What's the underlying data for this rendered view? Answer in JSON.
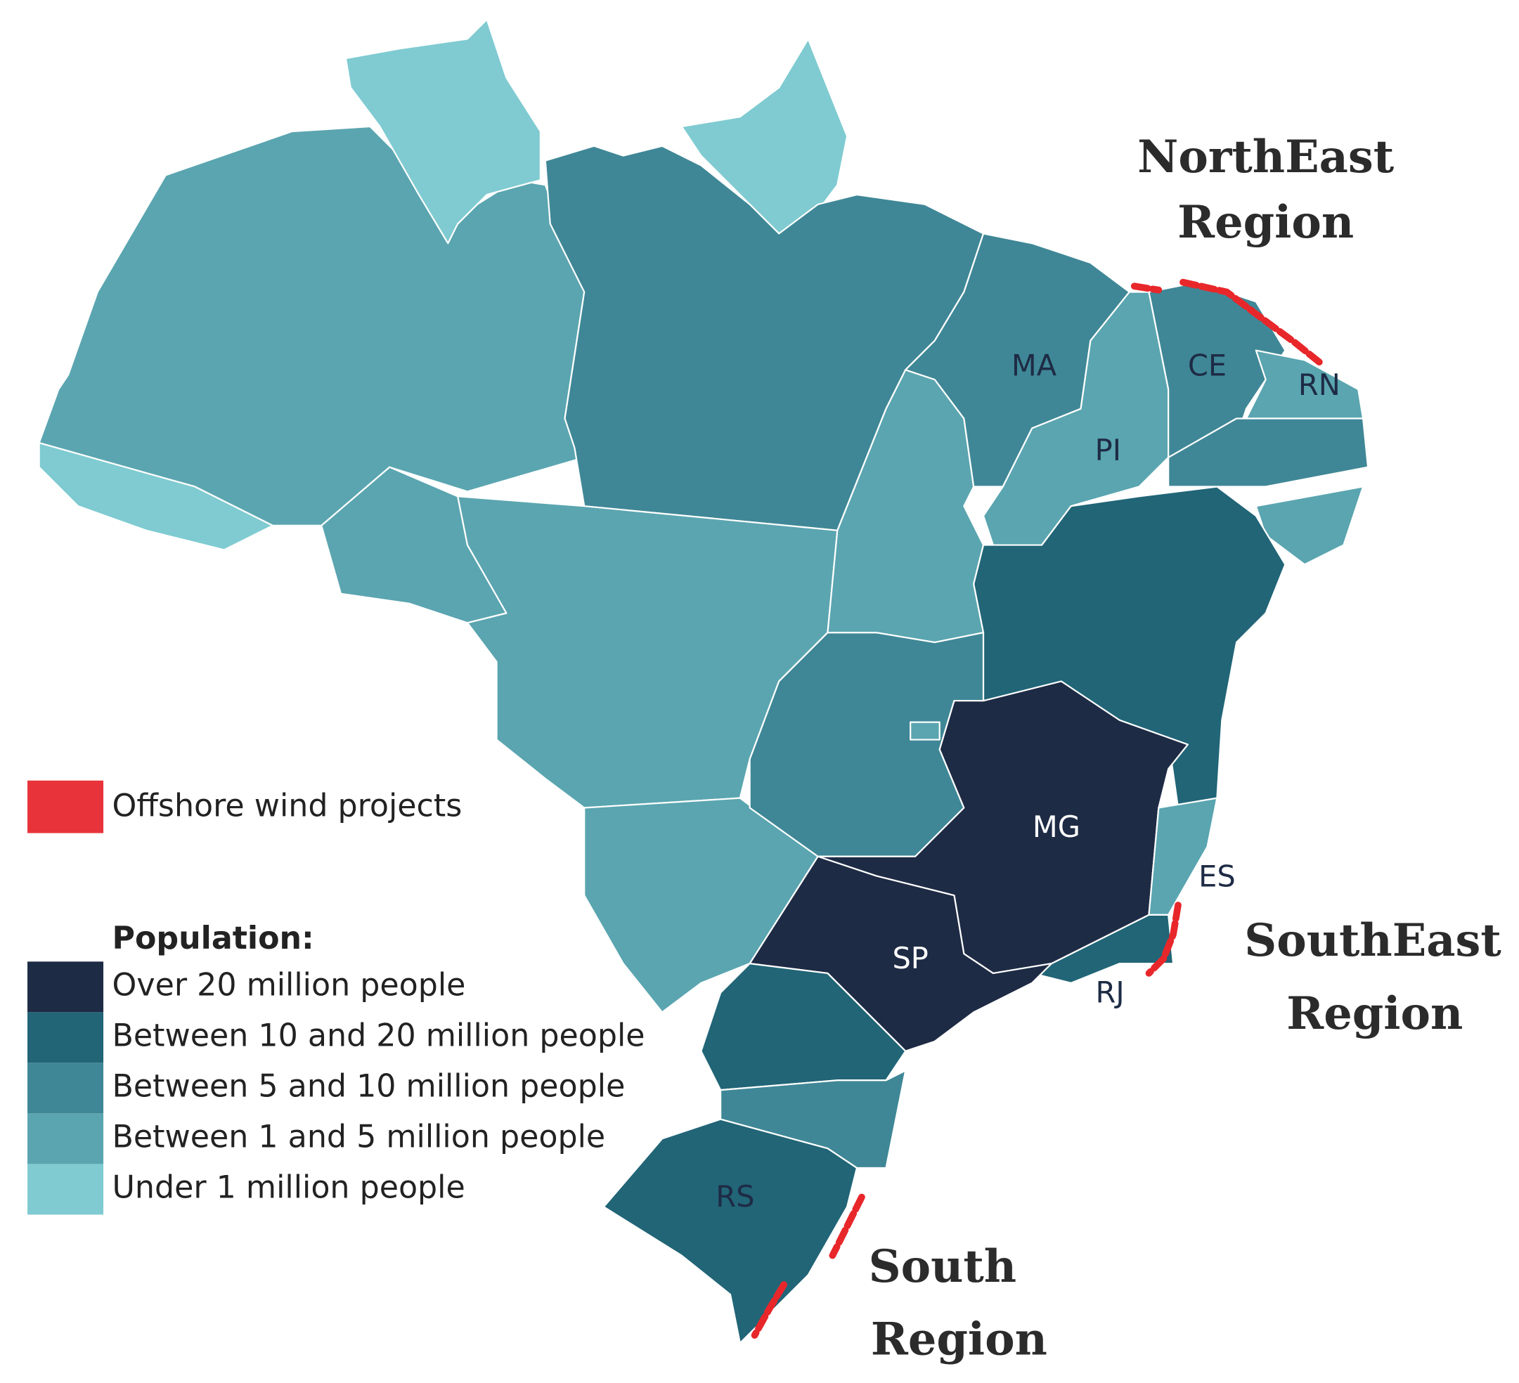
{
  "regions": [
    {
      "lines": [
        "NorthEast",
        "Region"
      ]
    },
    {
      "lines": [
        "SouthEast",
        "Region"
      ]
    },
    {
      "lines": [
        "South",
        "Region"
      ]
    }
  ],
  "state_labels": [
    "MA",
    "CE",
    "RN",
    "PI",
    "MG",
    "ES",
    "SP",
    "RJ",
    "RS"
  ],
  "legend": {
    "offshore": {
      "label": "Offshore wind projects",
      "color": "#e8333a"
    },
    "population_title": "Population:",
    "population_classes": [
      {
        "label": "Over 20 million people",
        "color": "#1e2b45"
      },
      {
        "label": "Between 10 and 20 million people",
        "color": "#216577"
      },
      {
        "label": "Between 5 and 10 million people",
        "color": "#3f8796"
      },
      {
        "label": "Between 1 and 5 million people",
        "color": "#5aa5b0"
      },
      {
        "label": "Under 1 million people",
        "color": "#7fcbd1"
      }
    ]
  }
}
